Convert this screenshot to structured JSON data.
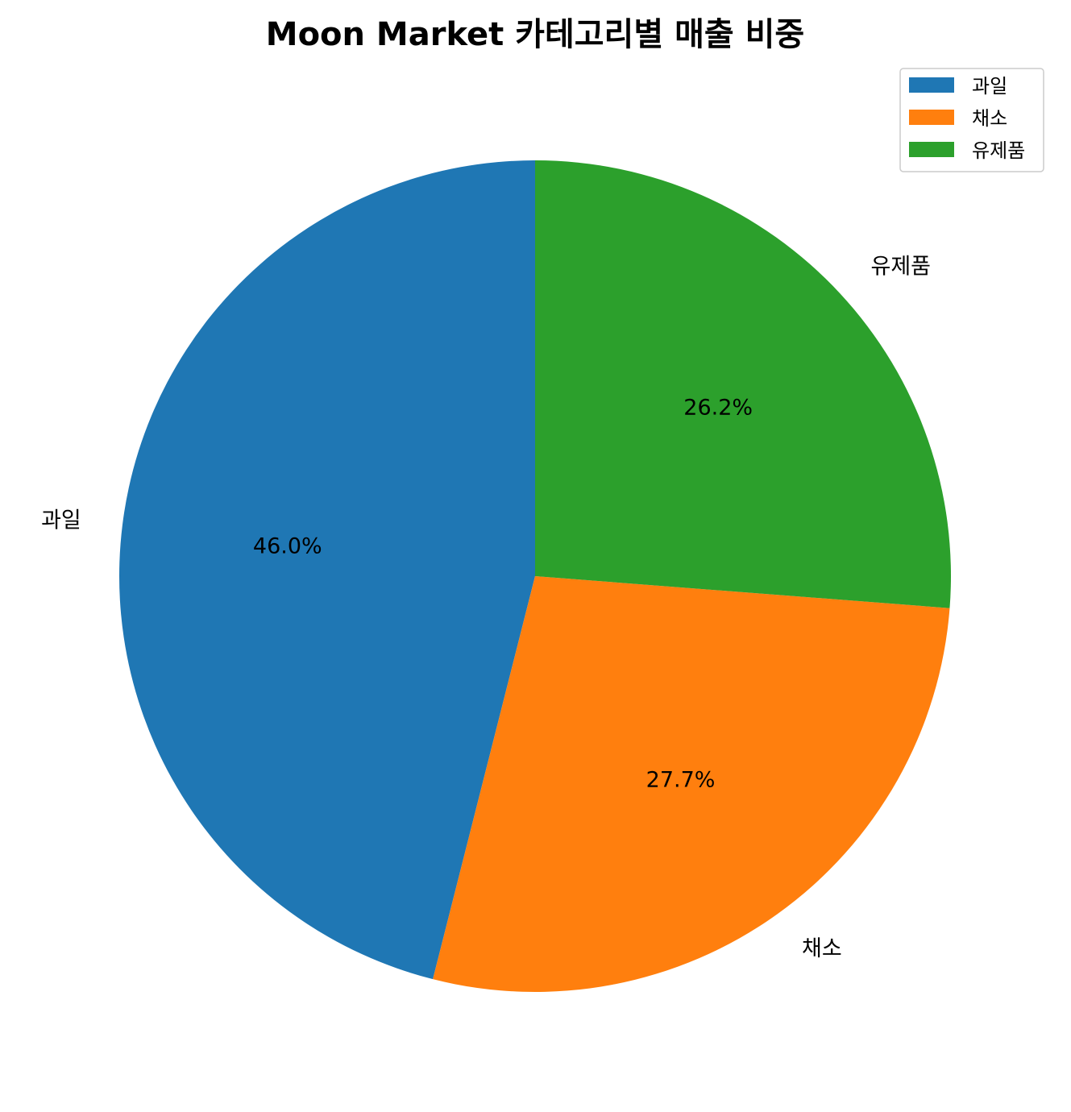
{
  "chart_data": {
    "type": "pie",
    "title": "Moon Market 카테고리별 매출 비중",
    "slices": [
      {
        "label": "과일",
        "percent": 46.0,
        "pct_text": "46.0%",
        "color": "#1f77b4"
      },
      {
        "label": "채소",
        "percent": 27.7,
        "pct_text": "27.7%",
        "color": "#ff7f0e"
      },
      {
        "label": "유제품",
        "percent": 26.2,
        "pct_text": "26.2%",
        "color": "#2ca02c"
      }
    ],
    "start_angle_deg": 90,
    "direction": "counterclockwise",
    "legend": {
      "placement": "top-right",
      "entries": [
        "과일",
        "채소",
        "유제품"
      ]
    }
  }
}
